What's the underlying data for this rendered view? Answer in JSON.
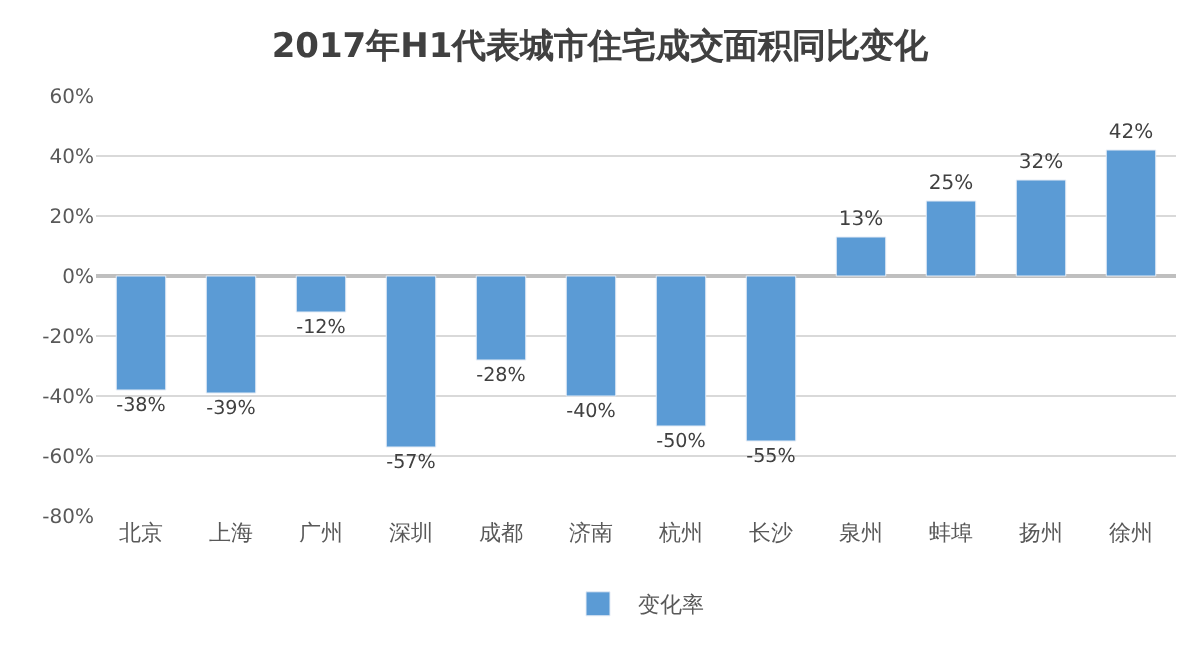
{
  "chart_data": {
    "type": "bar",
    "title": "2017年H1代表城市住宅成交面积同比变化",
    "categories": [
      "北京",
      "上海",
      "广州",
      "深圳",
      "成都",
      "济南",
      "杭州",
      "长沙",
      "泉州",
      "蚌埠",
      "扬州",
      "徐州"
    ],
    "series": [
      {
        "name": "变化率",
        "color": "#5b9bd5",
        "values": [
          -38,
          -39,
          -12,
          -57,
          -28,
          -40,
          -50,
          -55,
          13,
          25,
          32,
          42
        ],
        "value_labels": [
          "-38%",
          "-39%",
          "-12%",
          "-57%",
          "-28%",
          "-40%",
          "-50%",
          "-55%",
          "13%",
          "25%",
          "32%",
          "42%"
        ]
      }
    ],
    "ylim": [
      -80,
      60
    ],
    "yticks": [
      {
        "value": -80,
        "label": "-80%"
      },
      {
        "value": -60,
        "label": "-60%"
      },
      {
        "value": -40,
        "label": "-40%"
      },
      {
        "value": -20,
        "label": "-20%"
      },
      {
        "value": 0,
        "label": "0%"
      },
      {
        "value": 20,
        "label": "20%"
      },
      {
        "value": 40,
        "label": "40%"
      },
      {
        "value": 60,
        "label": "60%"
      }
    ],
    "grid": "y",
    "legend": "bottom"
  }
}
